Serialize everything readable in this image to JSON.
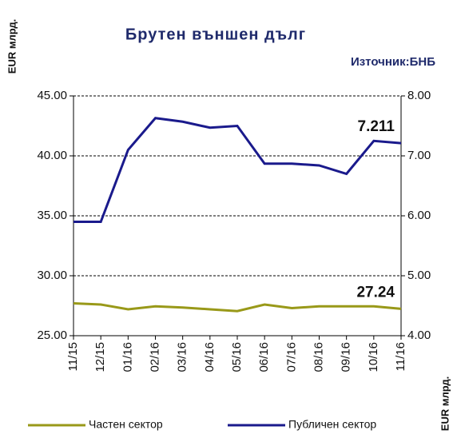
{
  "chart_data": {
    "type": "line",
    "title": "Брутен външен дълг",
    "subtitle": "Източник:БНБ",
    "y_label": "EUR млрд.",
    "y2_label": "EUR млрд.",
    "categories": [
      "11/15",
      "12/15",
      "01/16",
      "02/16",
      "03/16",
      "04/16",
      "05/16",
      "06/16",
      "07/16",
      "08/16",
      "09/16",
      "10/16",
      "11/16"
    ],
    "series": [
      {
        "name": "Частен сектор",
        "color": "#999919",
        "values": [
          27.7,
          27.6,
          27.2,
          27.45,
          27.35,
          27.2,
          27.05,
          27.6,
          27.3,
          27.45,
          27.45,
          27.45,
          27.24
        ]
      },
      {
        "name": "Публичен сектор",
        "color": "#1a1a8c",
        "axis": "y2",
        "values": [
          5.9,
          5.9,
          7.1,
          7.63,
          7.57,
          7.47,
          7.5,
          6.87,
          6.87,
          6.84,
          6.7,
          7.25,
          7.211
        ]
      }
    ],
    "ylim": [
      25,
      45
    ],
    "yticks": [
      {
        "value": 25,
        "label": "25.00"
      },
      {
        "value": 30,
        "label": "30.00"
      },
      {
        "value": 35,
        "label": "35.00"
      },
      {
        "value": 40,
        "label": "40.00"
      },
      {
        "value": 45,
        "label": "45.00"
      }
    ],
    "y2lim": [
      4,
      8
    ],
    "y2ticks": [
      {
        "value": 4,
        "label": "4.00"
      },
      {
        "value": 5,
        "label": "5.00"
      },
      {
        "value": 6,
        "label": "6.00"
      },
      {
        "value": 7,
        "label": "7.00"
      },
      {
        "value": 8,
        "label": "8.00"
      }
    ],
    "grid": true,
    "legend": "bottom"
  }
}
